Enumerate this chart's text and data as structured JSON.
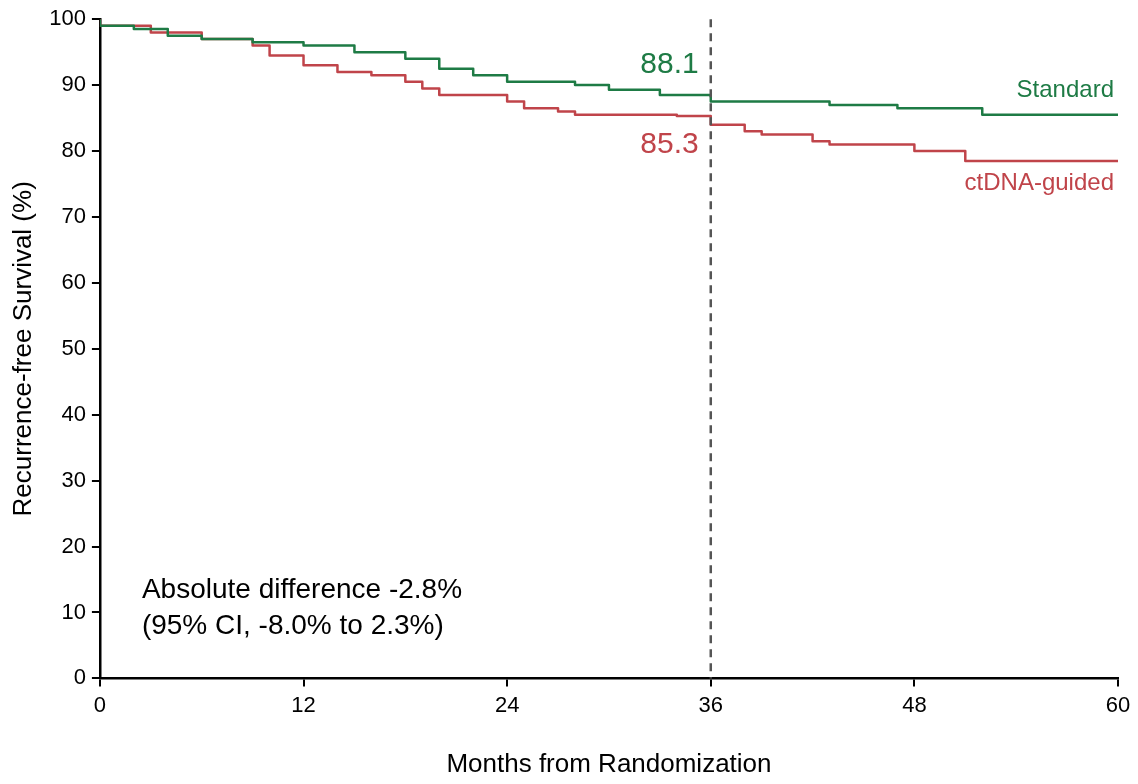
{
  "chart_data": {
    "type": "step",
    "xlabel": "Months from Randomization",
    "ylabel": "Recurrence-free Survival (%)",
    "xlim": [
      0,
      60
    ],
    "xticks": [
      0,
      12,
      24,
      36,
      48,
      60
    ],
    "ylim": [
      0,
      100
    ],
    "yticks": [
      0,
      10,
      20,
      30,
      40,
      50,
      60,
      70,
      80,
      90,
      100
    ],
    "grid": false,
    "legend": false,
    "marker": "none",
    "series": [
      {
        "name": "Standard",
        "color": "#1e7b45",
        "x": [
          0,
          2,
          4,
          6,
          9,
          12,
          15,
          18,
          20,
          22,
          24,
          28,
          30,
          33,
          36,
          38,
          43,
          47,
          52,
          55,
          60
        ],
        "values": [
          100,
          99,
          98.5,
          97.5,
          97,
          96.5,
          96,
          95,
          94,
          92.5,
          91.5,
          90.5,
          90,
          89.3,
          88.5,
          87.5,
          87.5,
          87,
          86.5,
          85.5,
          85.5
        ]
      },
      {
        "name": "ctDNA-guided",
        "color": "#c0444a",
        "x": [
          0,
          3,
          6,
          9,
          10,
          12,
          14,
          16,
          18,
          19,
          20,
          24,
          25,
          27,
          28,
          34,
          36,
          38,
          39,
          42,
          43,
          48,
          51,
          59.5,
          60
        ],
        "values": [
          100,
          99,
          98,
          97,
          96,
          94.5,
          93,
          92,
          91.5,
          90.5,
          89.5,
          88.5,
          87.5,
          86.5,
          86,
          85.5,
          85.3,
          84,
          83,
          82.5,
          81.5,
          81,
          80,
          78.5,
          78.5
        ]
      }
    ],
    "ref_lines": [
      {
        "axis": "x",
        "value": 36,
        "color": "#555555",
        "line_style": "dashed"
      }
    ],
    "annotations": [
      {
        "text": "88.1",
        "x": 36,
        "y": 88.1
      },
      {
        "text": "85.3",
        "x": 36,
        "y": 85.3
      },
      "Absolute difference -2.8%",
      "(95% CI, -8.0% to 2.3%)"
    ]
  }
}
